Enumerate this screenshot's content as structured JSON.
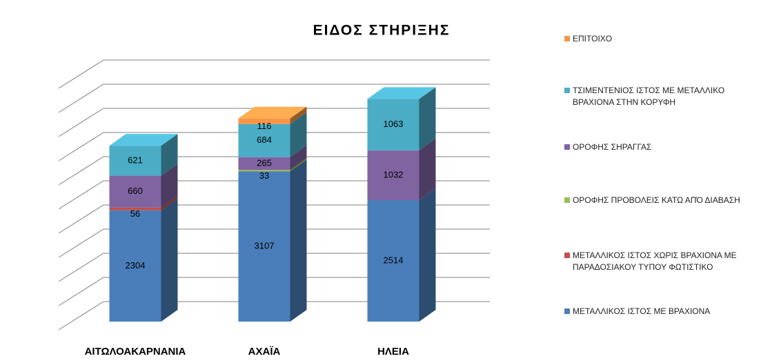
{
  "chart_data": {
    "type": "bar3d_stacked",
    "title": "ΕΙΔΟΣ ΣΤΗΡΙΞΗΣ",
    "categories": [
      "ΑΙΤΩΛΟΑΚΑΡΝΑΝΙΑ",
      "ΑΧΑΪΑ",
      "ΗΛΕΙΑ"
    ],
    "series": [
      {
        "name": "ΜΕΤΑΛΛΙΚΟΣ ΙΣΤΟΣ ΜΕ ΒΡΑΧΙΟΝΑ",
        "color": "#4a7ebb",
        "values": [
          2304,
          3107,
          2514
        ]
      },
      {
        "name": "ΜΕΤΑΛΛΙΚΟΣ ΙΣΤΟΣ ΧΩΡΙΣ ΒΡΑΧΙΟΝΑ ΜΕ ΠΑΡΑΔΟΣΙΑΚΟΥ  ΤΥΠΟΥ ΦΩΤΙΣΤΙΚΟ",
        "color": "#c0504d",
        "values": [
          56,
          null,
          null
        ]
      },
      {
        "name": "ΟΡΟΦΗΣ ΠΡΟΒΟΛΕΙΣ ΚΑΤΩ ΑΠΌ ΔΙΑΒΑΣΗ",
        "color": "#9bbb59",
        "values": [
          null,
          33,
          null
        ]
      },
      {
        "name": "ΟΡΟΦΗΣ ΣΗΡΑΓΓΑΣ",
        "color": "#8064a2",
        "values": [
          660,
          265,
          1032
        ]
      },
      {
        "name": "ΤΣΙΜΕΝΤΕΝΙΟΣ ΙΣΤΟΣ ΜΕ ΜΕΤΑΛΛΙΚΟ ΒΡΑΧΙΟΝΑ ΣΤΗΝ ΚΟΡΥΦΗ",
        "color": "#4bacc6",
        "values": [
          621,
          684,
          1063
        ]
      },
      {
        "name": "ΕΠΙΤΟΙΧΟ",
        "color": "#f79646",
        "values": [
          null,
          116,
          null
        ]
      }
    ],
    "ylim": [
      0,
      5000
    ],
    "yticks": [
      0,
      500,
      1000,
      1500,
      2000,
      2500,
      3000,
      3500,
      4000,
      4500,
      5000
    ],
    "grid": true
  }
}
